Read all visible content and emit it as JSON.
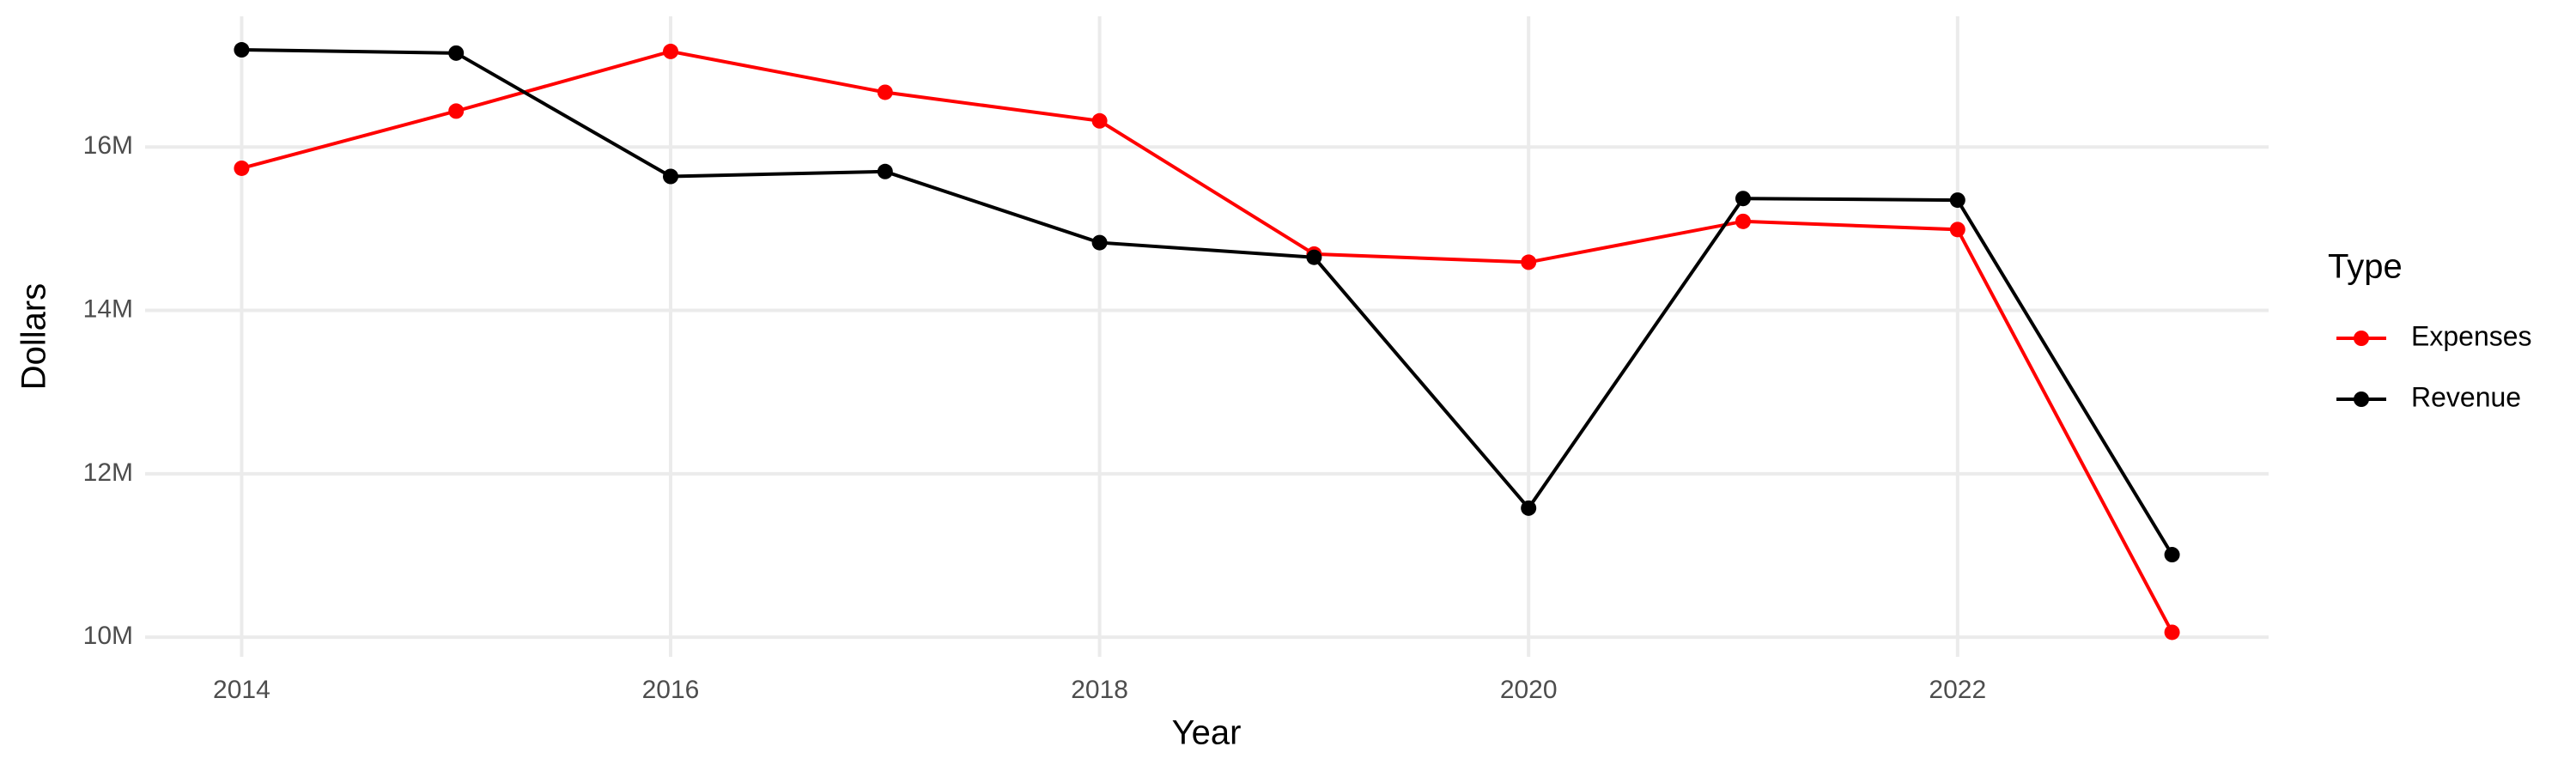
{
  "chart_data": {
    "type": "line",
    "x_label": "Year",
    "y_label": "Dollars",
    "x": [
      2014,
      2015,
      2016,
      2017,
      2018,
      2019,
      2020,
      2021,
      2022,
      2023
    ],
    "series": [
      {
        "name": "Expenses",
        "color": "#ff0000",
        "values": [
          15740000,
          16440000,
          17170000,
          16670000,
          16320000,
          14690000,
          14590000,
          15090000,
          14990000,
          10060000
        ]
      },
      {
        "name": "Revenue",
        "color": "#000000",
        "values": [
          17190000,
          17150000,
          15640000,
          15700000,
          14830000,
          14650000,
          11580000,
          15370000,
          15350000,
          11010000
        ]
      }
    ],
    "xlim": [
      2013.55,
      2023.45
    ],
    "ylim": [
      9760000,
      17600000
    ],
    "xticks": [
      2014,
      2016,
      2018,
      2020,
      2022
    ],
    "yticks": [
      {
        "value": 10000000,
        "label": "10M"
      },
      {
        "value": 12000000,
        "label": "12M"
      },
      {
        "value": 14000000,
        "label": "14M"
      },
      {
        "value": 16000000,
        "label": "16M"
      }
    ],
    "grid": true,
    "legend": {
      "title": "Type",
      "position": "right"
    }
  }
}
